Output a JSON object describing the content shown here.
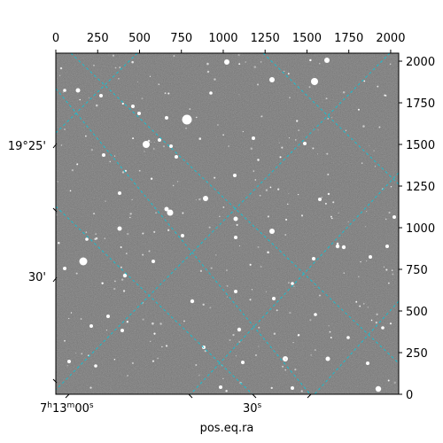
{
  "chart_data": {
    "type": "image",
    "image_pixel_range": {
      "x": [
        0,
        2048
      ],
      "y": [
        0,
        2048
      ]
    },
    "top_ticks": [
      "0",
      "250",
      "500",
      "750",
      "1000",
      "1250",
      "1500",
      "1750",
      "2000"
    ],
    "right_ticks": [
      "0",
      "250",
      "500",
      "750",
      "1000",
      "1250",
      "1500",
      "1750",
      "2000"
    ],
    "dec_ticks": [
      "19°25'",
      "30'"
    ],
    "ra_ticks": [
      {
        "pre": "7",
        "h": "h",
        "mid": "13",
        "m": "m",
        "post": "00",
        "s": "s"
      },
      {
        "pre": "30",
        "s": "s"
      }
    ],
    "xlabel": "pos.eq.ra",
    "grid": true,
    "grid_color": "#17becf",
    "background_color": "#7a7a7a"
  }
}
